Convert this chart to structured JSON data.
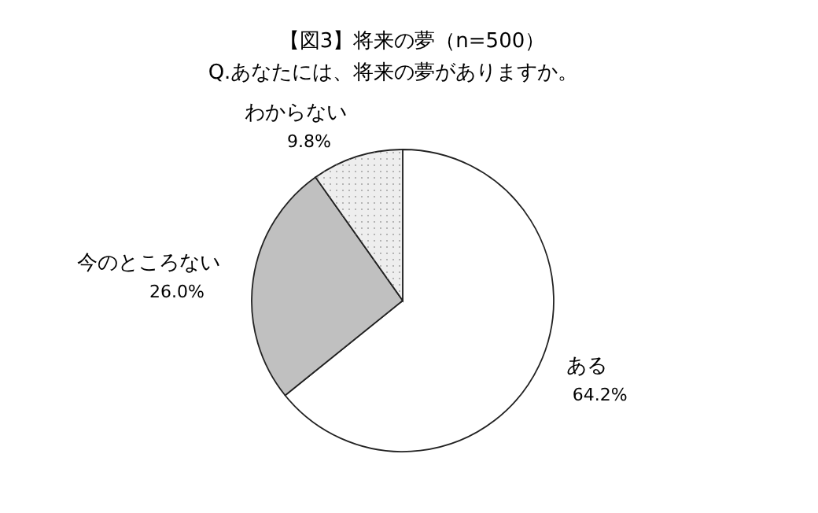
{
  "chart_data": {
    "type": "pie",
    "title": "【図3】将来の夢（n=500）",
    "subtitle": "Q.あなたには、将来の夢がありますか。",
    "categories": [
      "ある",
      "今のところない",
      "わからない"
    ],
    "values": [
      64.2,
      26.0,
      9.8
    ],
    "colors": [
      "#ffffff",
      "#c0c0c0",
      "#eeeeee"
    ],
    "value_labels": [
      "64.2%",
      "26.0%",
      "9.8%"
    ]
  }
}
